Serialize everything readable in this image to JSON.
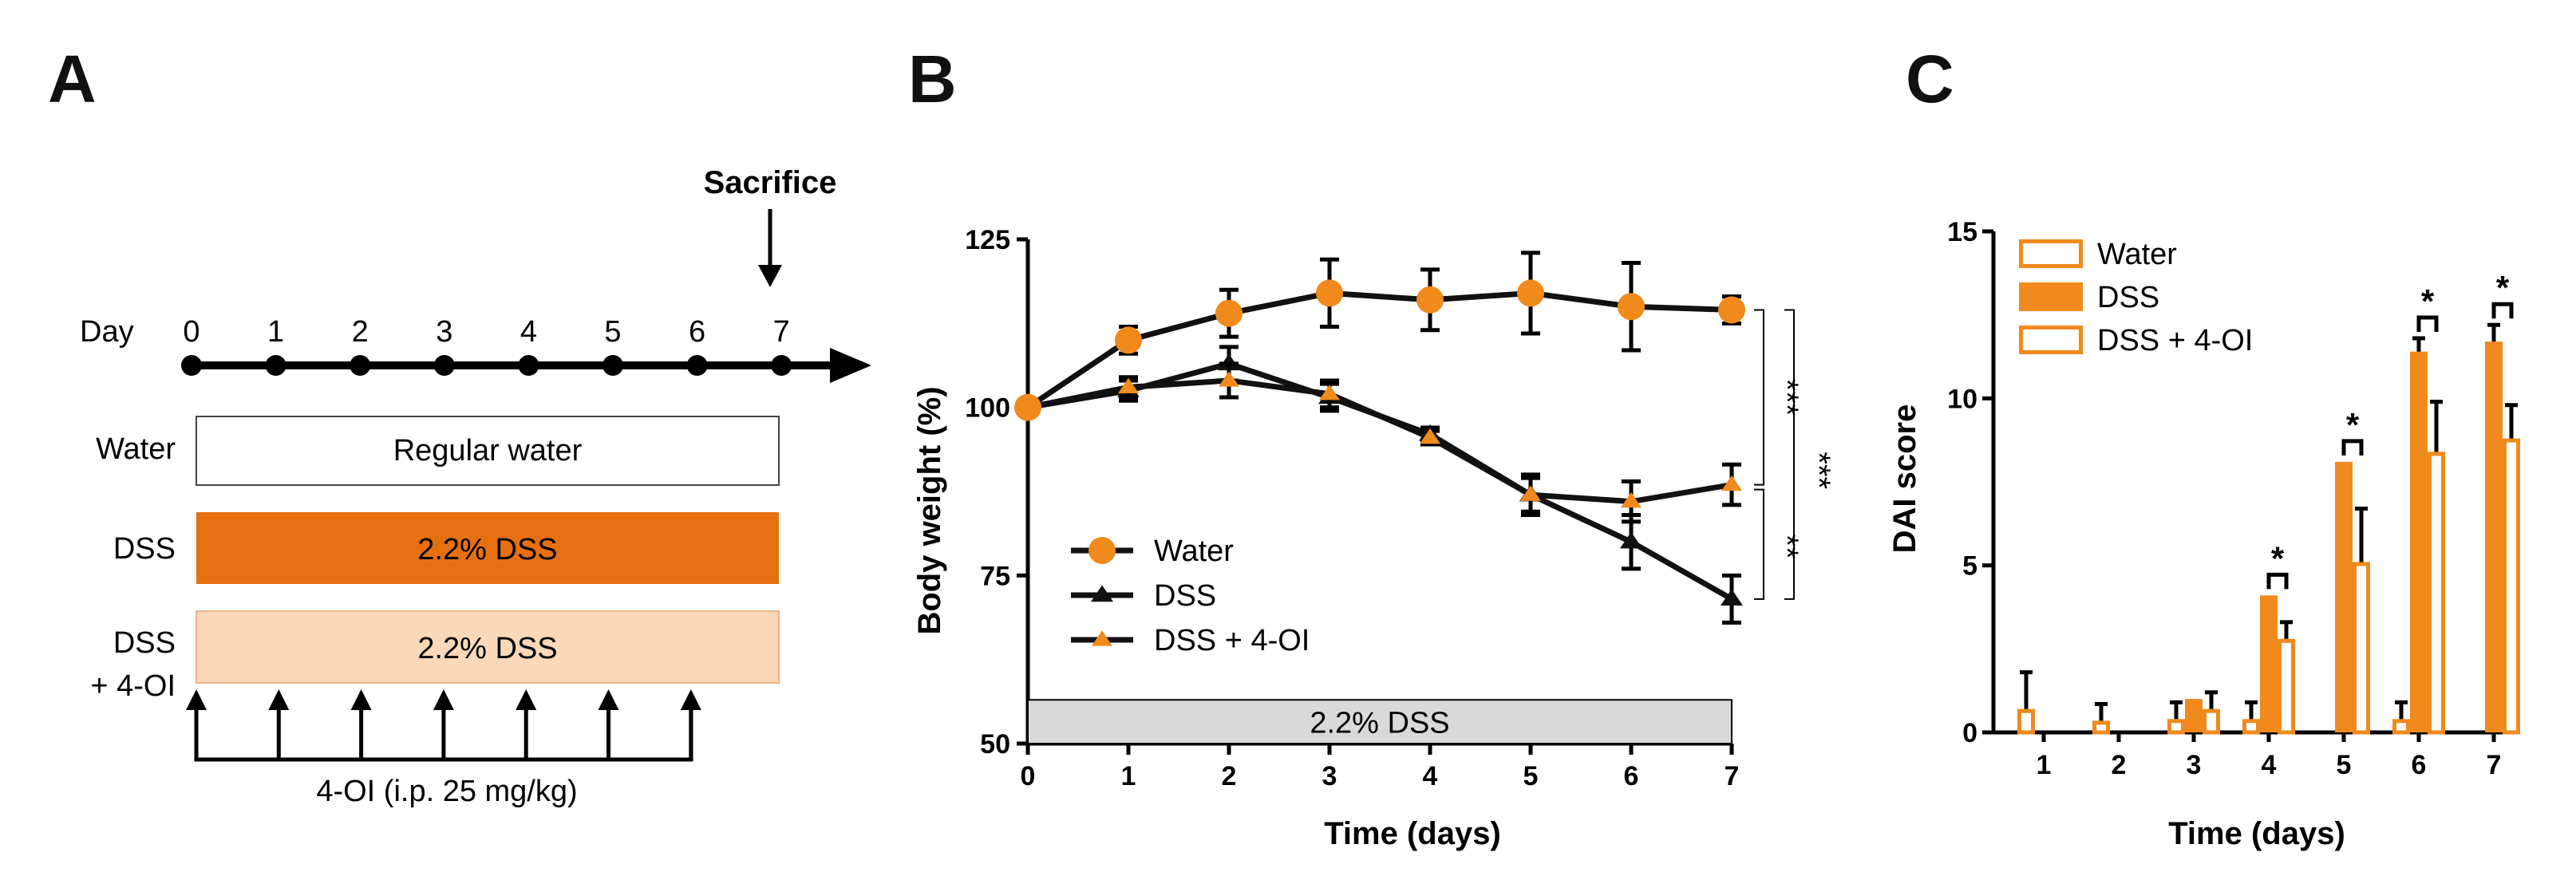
{
  "colors": {
    "orange": "#f08a1c",
    "dss_bar": "#e6700f",
    "light_bar": "#fad8b8",
    "gray_bar": "#d9d9d9",
    "black": "#111111"
  },
  "panel_a": {
    "letter": "A",
    "sacrifice": "Sacrifice",
    "day_label": "Day",
    "days": [
      "0",
      "1",
      "2",
      "3",
      "4",
      "5",
      "6",
      "7"
    ],
    "rows": [
      {
        "label": "Water",
        "bar_text": "Regular water"
      },
      {
        "label": "DSS",
        "bar_text": "2.2% DSS"
      },
      {
        "label_line1": "DSS",
        "label_line2": "+ 4-OI",
        "bar_text": "2.2% DSS"
      }
    ],
    "injection_label": "4-OI (i.p. 25 mg/kg)"
  },
  "panel_b": {
    "letter": "B",
    "dss_bar_text": "2.2% DSS",
    "significance": [
      "***",
      "***",
      "**"
    ]
  },
  "panel_c": {
    "letter": "C",
    "significance": [
      "*",
      "*",
      "*",
      "*"
    ]
  },
  "chart_data": [
    {
      "type": "line",
      "panel": "B",
      "xlabel": "Time (days)",
      "ylabel": "Body weight (%)",
      "x": [
        0,
        1,
        2,
        3,
        4,
        5,
        6,
        7
      ],
      "xlim": [
        0,
        7
      ],
      "ylim": [
        50,
        125
      ],
      "yticks": [
        50,
        75,
        100,
        125
      ],
      "series": [
        {
          "name": "Water",
          "marker": "circle",
          "values": [
            100,
            110,
            114,
            117,
            116,
            117,
            115,
            114.5
          ],
          "errors": [
            0,
            2,
            3.5,
            5,
            4.5,
            6,
            6.5,
            2
          ]
        },
        {
          "name": "DSS",
          "marker": "triangle",
          "values": [
            100,
            102.5,
            106.5,
            101.5,
            96,
            87,
            80,
            71.5
          ],
          "errors": [
            0,
            1.5,
            2.5,
            2,
            1,
            3,
            4,
            3.5
          ]
        },
        {
          "name": "DSS + 4-OI",
          "marker": "triangle-orange",
          "values": [
            100,
            103,
            104,
            102,
            95.5,
            87,
            86,
            88.5
          ],
          "errors": [
            0,
            1.5,
            2.5,
            2,
            1,
            2.5,
            3,
            3
          ]
        }
      ]
    },
    {
      "type": "bar",
      "panel": "C",
      "xlabel": "Time (days)",
      "ylabel": "DAI score",
      "categories": [
        "1",
        "2",
        "3",
        "4",
        "5",
        "6",
        "7"
      ],
      "ylim": [
        0,
        15
      ],
      "yticks": [
        0,
        5,
        10,
        15
      ],
      "series": [
        {
          "name": "Water",
          "values": [
            0.7,
            0.35,
            0.4,
            0.4,
            0,
            0.4,
            0
          ],
          "errors": [
            1.1,
            0.5,
            0.5,
            0.5,
            0,
            0.5,
            0
          ]
        },
        {
          "name": "DSS",
          "values": [
            0,
            0,
            1.0,
            4.1,
            8.1,
            11.4,
            11.7
          ],
          "errors": [
            0,
            0,
            0,
            0,
            0,
            0.4,
            0.5
          ]
        },
        {
          "name": "DSS + 4-OI",
          "values": [
            0,
            0,
            0.7,
            2.8,
            5.1,
            8.4,
            8.8
          ],
          "errors": [
            0,
            0,
            0.5,
            0.5,
            1.6,
            1.5,
            1.0
          ]
        }
      ]
    }
  ]
}
